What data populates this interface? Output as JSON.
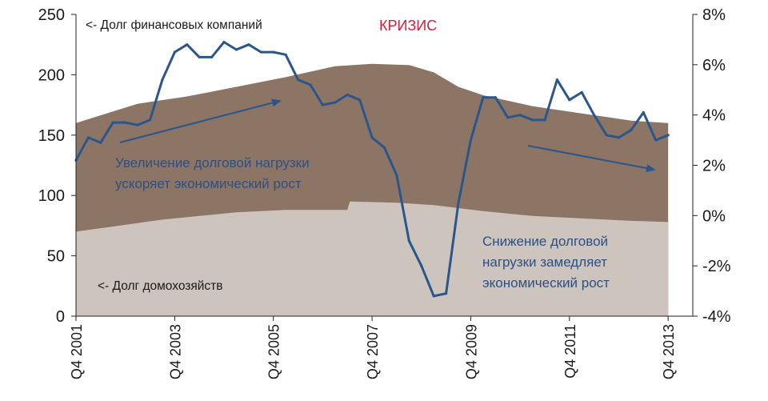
{
  "chart_data": {
    "type": "area",
    "colors": {
      "household_area": "#cdc4bd",
      "financial_area": "#8d7566",
      "growth_line": "#2a568c",
      "crisis_text": "#d2203a",
      "annotation_text": "#2f4f7f",
      "arrow": "#2a568c"
    },
    "x_tick_labels": [
      "Q4 2001",
      "Q4 2003",
      "Q4 2005",
      "Q4 2007",
      "Q4 2009",
      "Q4 2011",
      "Q4 2013"
    ],
    "x_range": [
      2001.75,
      2014.25
    ],
    "y_left": {
      "ticks": [
        "250",
        "200",
        "150",
        "100",
        "50",
        "0"
      ],
      "range": [
        0,
        250
      ]
    },
    "y_right": {
      "ticks": [
        "8%",
        "6%",
        "4%",
        "2%",
        "0%",
        "-2%",
        "-4%"
      ],
      "range": [
        -4,
        8
      ]
    },
    "series": [
      {
        "name": "Долг домохозяйств",
        "kind": "stacked-area-bottom",
        "axis": "left",
        "x": [
          2001.75,
          2003.5,
          2005.0,
          2006.0,
          2007.25,
          2007.3,
          2008.25,
          2009.0,
          2010.0,
          2011.0,
          2012.0,
          2013.0,
          2013.75
        ],
        "values": [
          70,
          80,
          86,
          88,
          88,
          95,
          94,
          92,
          87,
          83,
          81,
          79,
          78
        ]
      },
      {
        "name": "Долг финансовых компаний",
        "kind": "stacked-area-top",
        "axis": "left",
        "x": [
          2001.75,
          2003.0,
          2004.0,
          2005.0,
          2006.0,
          2007.0,
          2007.75,
          2008.5,
          2009.0,
          2009.5,
          2010.0,
          2011.0,
          2012.0,
          2013.0,
          2013.75
        ],
        "values": [
          160,
          176,
          182,
          190,
          198,
          207,
          209,
          208,
          202,
          190,
          183,
          174,
          168,
          162,
          160
        ]
      },
      {
        "name": "growth",
        "kind": "line",
        "axis": "right",
        "x": [
          2001.75,
          2002.0,
          2002.25,
          2002.5,
          2002.75,
          2003.0,
          2003.25,
          2003.5,
          2003.75,
          2004.0,
          2004.25,
          2004.5,
          2004.75,
          2005.0,
          2005.25,
          2005.5,
          2005.75,
          2006.0,
          2006.25,
          2006.5,
          2006.75,
          2007.0,
          2007.25,
          2007.5,
          2007.75,
          2008.0,
          2008.25,
          2008.5,
          2008.75,
          2009.0,
          2009.25,
          2009.5,
          2009.75,
          2010.0,
          2010.25,
          2010.5,
          2010.75,
          2011.0,
          2011.25,
          2011.5,
          2011.75,
          2012.0,
          2012.25,
          2012.5,
          2012.75,
          2013.0,
          2013.25,
          2013.5,
          2013.75
        ],
        "values": [
          2.2,
          3.1,
          2.9,
          3.7,
          3.7,
          3.6,
          3.8,
          5.4,
          6.5,
          6.8,
          6.3,
          6.3,
          6.9,
          6.6,
          6.8,
          6.5,
          6.5,
          6.4,
          5.4,
          5.2,
          4.4,
          4.5,
          4.8,
          4.6,
          3.1,
          2.7,
          1.6,
          -1.0,
          -2.0,
          -3.2,
          -3.1,
          0.5,
          3.0,
          4.7,
          4.7,
          3.9,
          4.0,
          3.8,
          3.8,
          5.4,
          4.6,
          4.9,
          4.0,
          3.2,
          3.1,
          3.4,
          4.1,
          3.0,
          3.2
        ]
      }
    ],
    "annotations": {
      "financial_label": "<- Долг финансовых компаний",
      "crisis_label": "КРИЗИС",
      "household_label": "<- Долг домохозяйств",
      "growth_left_line1": "Увеличение долговой нагрузки",
      "growth_left_line2": "ускоряет экономический рост",
      "growth_right_line1": "Снижение долговой",
      "growth_right_line2": "нагрузки замедляет",
      "growth_right_line3": "экономический рост"
    }
  }
}
